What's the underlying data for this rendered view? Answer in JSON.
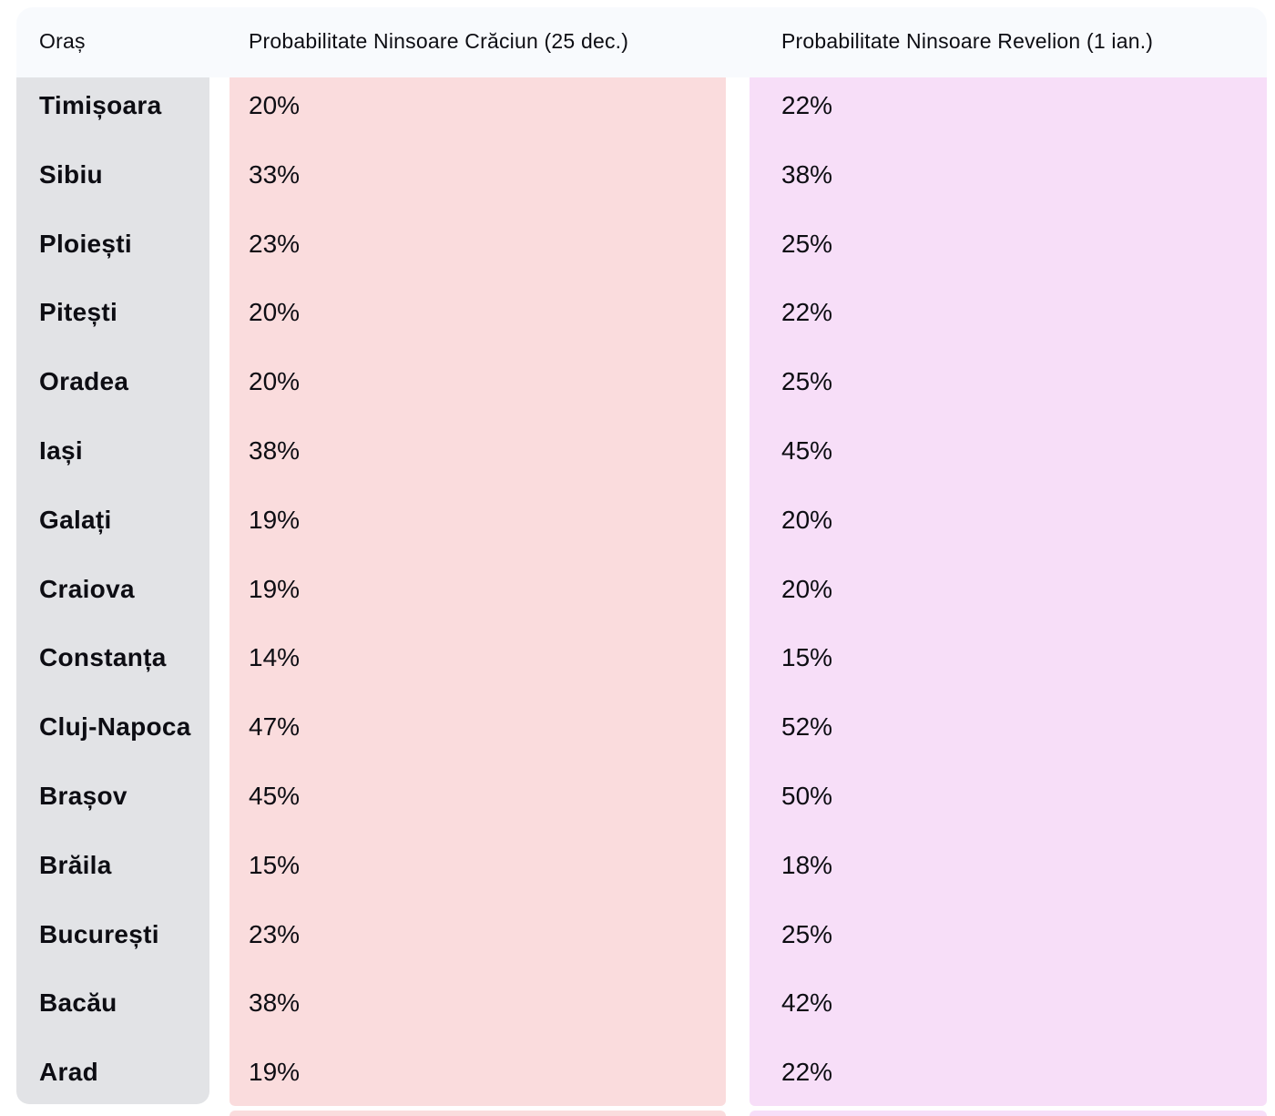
{
  "chart_data": {
    "type": "table",
    "columns": [
      "Oraș",
      "Probabilitate Ninsoare Crăciun (25 dec.)",
      "Probabilitate Ninsoare Revelion (1 ian.)"
    ],
    "rows": [
      {
        "city": "Timișoara",
        "craciun": "20%",
        "revelion": "22%"
      },
      {
        "city": "Sibiu",
        "craciun": "33%",
        "revelion": "38%"
      },
      {
        "city": "Ploiești",
        "craciun": "23%",
        "revelion": "25%"
      },
      {
        "city": "Pitești",
        "craciun": "20%",
        "revelion": "22%"
      },
      {
        "city": "Oradea",
        "craciun": "20%",
        "revelion": "25%"
      },
      {
        "city": "Iași",
        "craciun": "38%",
        "revelion": "45%"
      },
      {
        "city": "Galați",
        "craciun": "19%",
        "revelion": "20%"
      },
      {
        "city": "Craiova",
        "craciun": "19%",
        "revelion": "20%"
      },
      {
        "city": "Constanța",
        "craciun": "14%",
        "revelion": "15%"
      },
      {
        "city": "Cluj-Napoca",
        "craciun": "47%",
        "revelion": "52%"
      },
      {
        "city": "Brașov",
        "craciun": "45%",
        "revelion": "50%"
      },
      {
        "city": "Brăila",
        "craciun": "15%",
        "revelion": "18%"
      },
      {
        "city": "București",
        "craciun": "23%",
        "revelion": "25%"
      },
      {
        "city": "Bacău",
        "craciun": "38%",
        "revelion": "42%"
      },
      {
        "city": "Arad",
        "craciun": "19%",
        "revelion": "22%"
      }
    ],
    "layout": {
      "legend": "none",
      "grid": "off",
      "column_tinting": true
    }
  },
  "colors": {
    "header_bg": "#f8fafd",
    "city_column_bg": "#e2e3e6",
    "craciun_column_bg": "#fadcdd",
    "revelion_column_bg": "#f7def8",
    "text": "#0d0d13",
    "page_bg": "#ffffff"
  }
}
